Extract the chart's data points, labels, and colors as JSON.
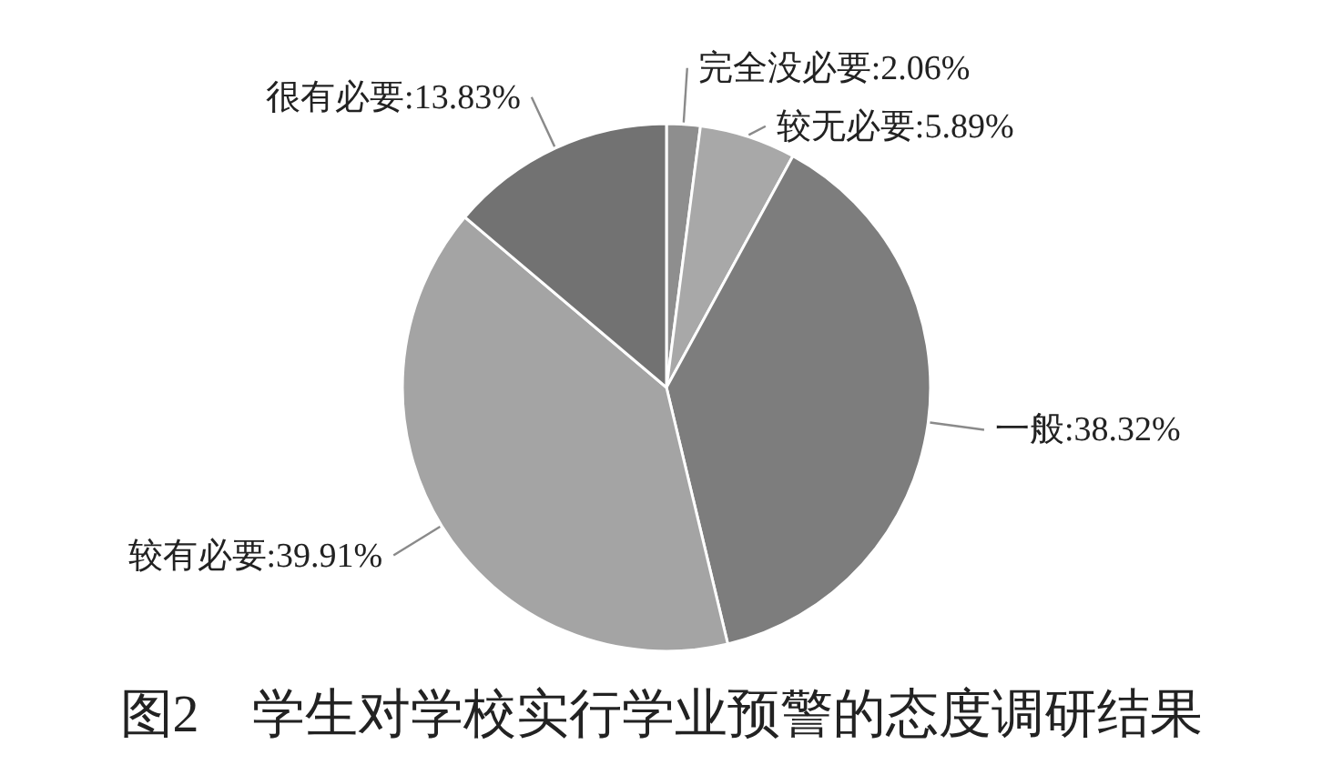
{
  "chart_data": {
    "type": "pie",
    "title": "图2　学生对学校实行学业预警的态度调研结果",
    "categories": [
      "完全没必要",
      "较无必要",
      "一般",
      "较有必要",
      "很有必要"
    ],
    "values": [
      2.06,
      5.89,
      38.32,
      39.91,
      13.83
    ],
    "colors": [
      "#8e8e8e",
      "#a8a8a8",
      "#7d7d7d",
      "#a4a4a4",
      "#727272"
    ],
    "value_labels": [
      ":2.06%",
      ":5.89%",
      ":38.32%",
      ":39.91%",
      ":13.83%"
    ]
  }
}
